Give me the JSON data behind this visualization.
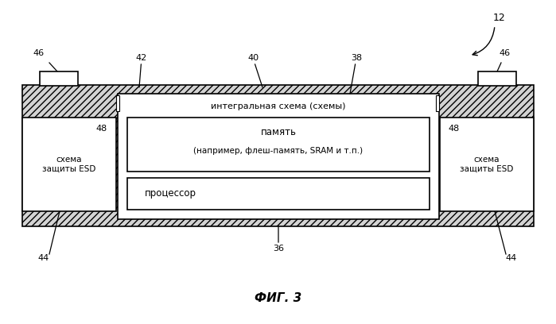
{
  "title": "ФИГ. 3",
  "label_12": "12",
  "label_36": "36",
  "label_38": "38",
  "label_40": "40",
  "label_42": "42",
  "label_44_left": "44",
  "label_44_right": "44",
  "label_46_left": "46",
  "label_46_right": "46",
  "label_48_left": "48",
  "label_48_right": "48",
  "text_ic": "интегральная схема (схемы)",
  "text_memory": "память",
  "text_memory2": "(например, флеш-память, SRAM и т.п.)",
  "text_processor": "процессор",
  "text_esd_left": "схема\nзащиты ESD",
  "text_esd_right": "схема\nзащиты ESD",
  "hatch_pattern": "////",
  "bg_color": "#ffffff"
}
